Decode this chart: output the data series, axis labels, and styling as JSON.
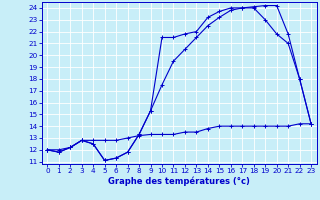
{
  "xlabel": "Graphe des températures (°c)",
  "xlim_min": -0.5,
  "xlim_max": 23.5,
  "ylim_min": 10.8,
  "ylim_max": 24.5,
  "xticks": [
    0,
    1,
    2,
    3,
    4,
    5,
    6,
    7,
    8,
    9,
    10,
    11,
    12,
    13,
    14,
    15,
    16,
    17,
    18,
    19,
    20,
    21,
    22,
    23
  ],
  "yticks": [
    11,
    12,
    13,
    14,
    15,
    16,
    17,
    18,
    19,
    20,
    21,
    22,
    23,
    24
  ],
  "bg_color": "#c8eef8",
  "line_color": "#0000cc",
  "grid_color": "#ffffff",
  "line1_x": [
    0,
    1,
    2,
    3,
    4,
    5,
    6,
    7,
    8,
    9,
    10,
    11,
    12,
    13,
    14,
    15,
    16,
    17,
    18,
    19,
    20,
    21,
    22,
    23
  ],
  "line1_y": [
    12.0,
    11.8,
    12.2,
    12.8,
    12.5,
    11.1,
    11.3,
    11.8,
    13.3,
    15.3,
    21.5,
    21.5,
    21.8,
    22.0,
    23.2,
    23.7,
    24.0,
    24.0,
    24.1,
    24.2,
    24.2,
    21.8,
    18.0,
    14.2
  ],
  "line2_x": [
    0,
    1,
    2,
    3,
    4,
    5,
    6,
    7,
    8,
    9,
    10,
    11,
    12,
    13,
    14,
    15,
    16,
    17,
    18,
    19,
    20,
    21,
    22,
    23
  ],
  "line2_y": [
    12.0,
    11.8,
    12.2,
    12.8,
    12.5,
    11.1,
    11.3,
    11.8,
    13.3,
    15.3,
    17.5,
    19.5,
    20.5,
    21.5,
    22.5,
    23.2,
    23.8,
    24.0,
    24.0,
    23.0,
    21.8,
    21.0,
    18.0,
    14.2
  ],
  "line3_x": [
    0,
    1,
    2,
    3,
    4,
    5,
    6,
    7,
    8,
    9,
    10,
    11,
    12,
    13,
    14,
    15,
    16,
    17,
    18,
    19,
    20,
    21,
    22,
    23
  ],
  "line3_y": [
    12.0,
    12.0,
    12.2,
    12.8,
    12.8,
    12.8,
    12.8,
    13.0,
    13.2,
    13.3,
    13.3,
    13.3,
    13.5,
    13.5,
    13.8,
    14.0,
    14.0,
    14.0,
    14.0,
    14.0,
    14.0,
    14.0,
    14.2,
    14.2
  ]
}
